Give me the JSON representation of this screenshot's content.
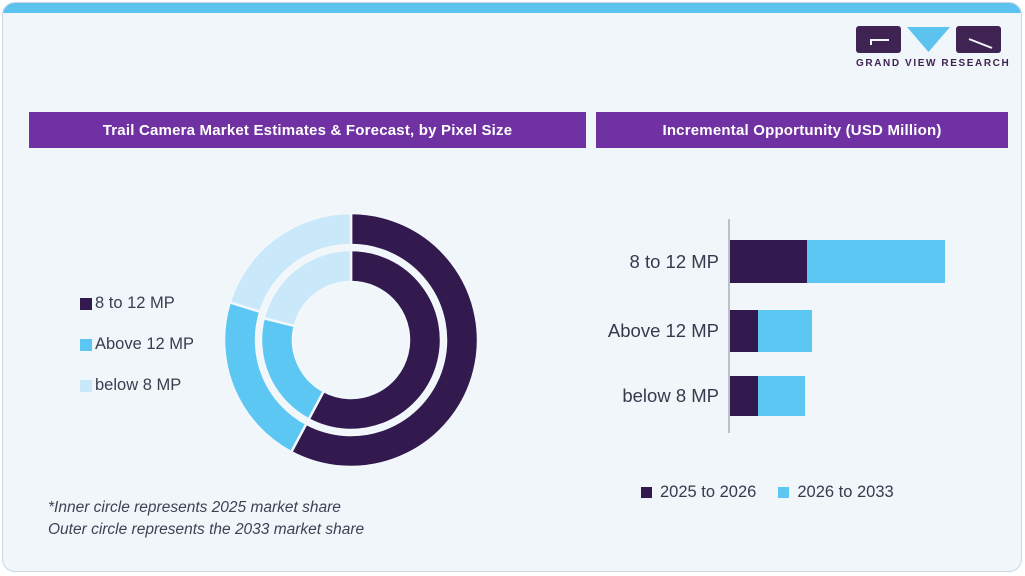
{
  "card": {
    "background": "#f0f6fa",
    "top_strip_color": "#5bc3ee",
    "border_color": "#ccd6df"
  },
  "logo": {
    "name": "Grand View Research logo",
    "text": "GRAND VIEW RESEARCH",
    "block_color": "#3f2352",
    "triangle_color": "#5bc3ee",
    "text_color": "#3f2352"
  },
  "left_panel": {
    "title": "Trail Camera Market Estimates & Forecast, by Pixel Size",
    "title_bg": "#7032a3",
    "footnote_line1": "*Inner circle represents 2025 market share",
    "footnote_line2": "Outer circle represents the 2033 market share"
  },
  "right_panel": {
    "title": "Incremental Opportunity (USD Million)",
    "title_bg": "#7032a3"
  },
  "chart_data": [
    {
      "type": "pie",
      "subtype": "double-ring-donut",
      "title": "Trail Camera Market Estimates & Forecast, by Pixel Size",
      "labels": [
        "8 to 12 MP",
        "Above 12 MP",
        "below 8 MP"
      ],
      "colors": [
        "#321a4e",
        "#5cc7f2",
        "#c9e8f9"
      ],
      "rings": [
        {
          "name": "2025 market share",
          "position": "inner",
          "values_pct": [
            57.8,
            21.1,
            21.1
          ]
        },
        {
          "name": "2033 market share",
          "position": "outer",
          "values_pct": [
            57.8,
            22.0,
            20.2
          ]
        }
      ],
      "start_angle_deg": 0,
      "direction": "clockwise",
      "legend_position": "left",
      "footnote": [
        "*Inner circle represents 2025 market share",
        "Outer circle represents the 2033 market share"
      ]
    },
    {
      "type": "bar",
      "orientation": "horizontal",
      "stacked": true,
      "title": "Incremental Opportunity (USD Million)",
      "categories": [
        "8 to 12 MP",
        "Above 12 MP",
        "below 8 MP"
      ],
      "series": [
        {
          "name": "2025 to 2026",
          "color": "#321a4e",
          "values": [
            36,
            13,
            13
          ]
        },
        {
          "name": "2026 to 2033",
          "color": "#5cc7f2",
          "values": [
            64,
            25,
            22
          ]
        }
      ],
      "value_axis_labels": "none shown (relative units, longest bar = 100)",
      "grid": false,
      "legend_position": "bottom"
    }
  ]
}
